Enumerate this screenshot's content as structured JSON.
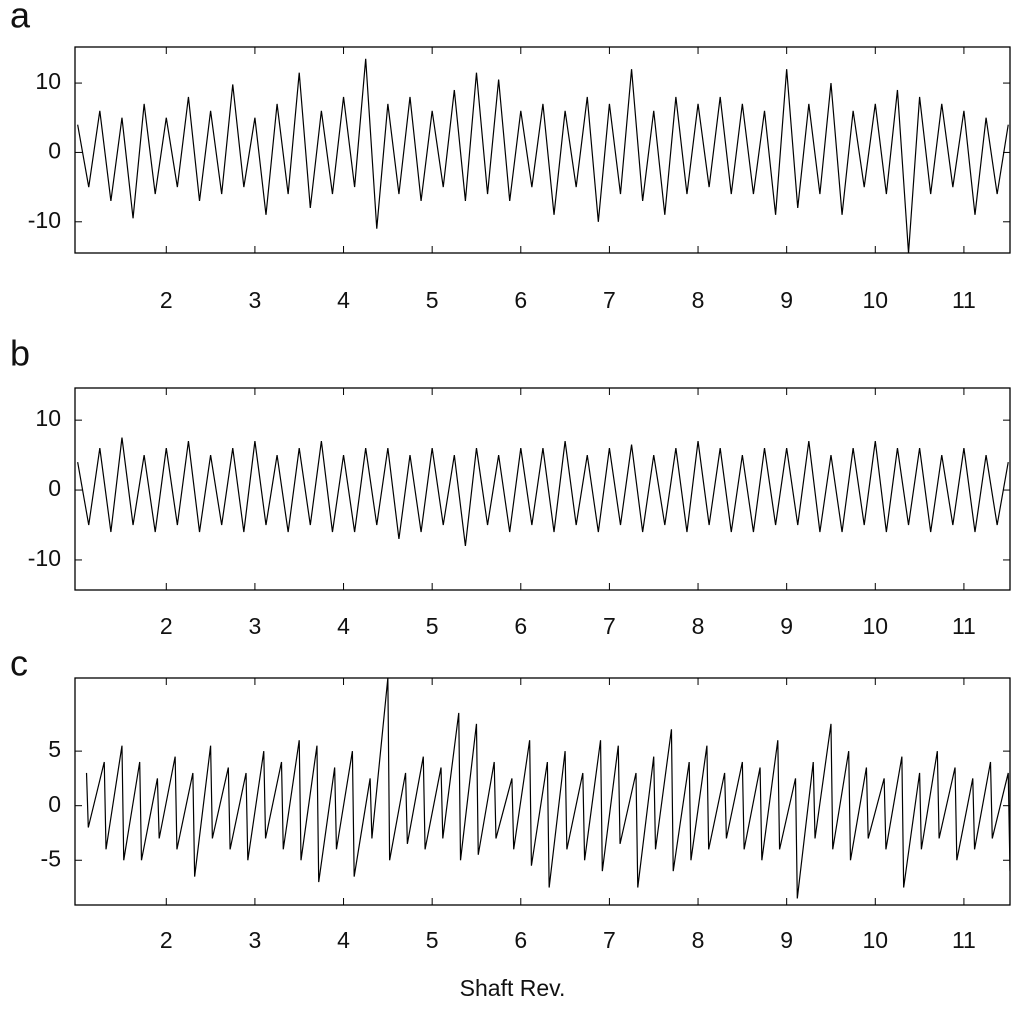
{
  "chart_data": [
    {
      "type": "line",
      "title": "a",
      "color": "#000000",
      "xlim": [
        0.97,
        11.52
      ],
      "ylim": [
        -14.5,
        15.2
      ],
      "xticks": [
        2,
        3,
        4,
        5,
        6,
        7,
        8,
        9,
        10,
        11
      ],
      "yticks": [
        -10,
        0,
        10
      ],
      "x": [
        1,
        1.125,
        1.25,
        1.375,
        1.5,
        1.625,
        1.75,
        1.875,
        2,
        2.125,
        2.25,
        2.375,
        2.5,
        2.625,
        2.75,
        2.875,
        3,
        3.125,
        3.25,
        3.375,
        3.5,
        3.625,
        3.75,
        3.875,
        4,
        4.125,
        4.25,
        4.375,
        4.5,
        4.625,
        4.75,
        4.875,
        5,
        5.125,
        5.25,
        5.375,
        5.5,
        5.625,
        5.75,
        5.875,
        6,
        6.125,
        6.25,
        6.375,
        6.5,
        6.625,
        6.75,
        6.875,
        7,
        7.125,
        7.25,
        7.375,
        7.5,
        7.625,
        7.75,
        7.875,
        8,
        8.125,
        8.25,
        8.375,
        8.5,
        8.625,
        8.75,
        8.875,
        9,
        9.125,
        9.25,
        9.375,
        9.5,
        9.625,
        9.75,
        9.875,
        10,
        10.125,
        10.25,
        10.375,
        10.5,
        10.625,
        10.75,
        10.875,
        11,
        11.125,
        11.25,
        11.375,
        11.5
      ],
      "values": [
        4,
        -5,
        6,
        -7,
        5,
        -9.5,
        7,
        -6,
        5,
        -5,
        8,
        -7,
        6,
        -6,
        9.8,
        -5,
        5,
        -9,
        7,
        -6,
        11.5,
        -8,
        6,
        -6,
        8,
        -5,
        13.5,
        -11,
        7,
        -6,
        8,
        -7,
        6,
        -5,
        9,
        -7,
        11.5,
        -6,
        10.5,
        -7,
        6,
        -5,
        7,
        -9,
        6,
        -5,
        8,
        -10,
        7,
        -6,
        12,
        -7,
        6,
        -9,
        8,
        -6,
        7,
        -5,
        8,
        -6,
        7,
        -6,
        6,
        -9,
        12,
        -8,
        7,
        -6,
        10,
        -9,
        6,
        -5,
        7,
        -6,
        9,
        -14.5,
        8,
        -6,
        7,
        -5,
        6,
        -9,
        5,
        -6,
        4
      ]
    },
    {
      "type": "line",
      "title": "b",
      "color": "#000000",
      "xlim": [
        0.97,
        11.52
      ],
      "ylim": [
        -14.3,
        14.6
      ],
      "xticks": [
        2,
        3,
        4,
        5,
        6,
        7,
        8,
        9,
        10,
        11
      ],
      "yticks": [
        -10,
        0,
        10
      ],
      "x": [
        1,
        1.125,
        1.25,
        1.375,
        1.5,
        1.625,
        1.75,
        1.875,
        2,
        2.125,
        2.25,
        2.375,
        2.5,
        2.625,
        2.75,
        2.875,
        3,
        3.125,
        3.25,
        3.375,
        3.5,
        3.625,
        3.75,
        3.875,
        4,
        4.125,
        4.25,
        4.375,
        4.5,
        4.625,
        4.75,
        4.875,
        5,
        5.125,
        5.25,
        5.375,
        5.5,
        5.625,
        5.75,
        5.875,
        6,
        6.125,
        6.25,
        6.375,
        6.5,
        6.625,
        6.75,
        6.875,
        7,
        7.125,
        7.25,
        7.375,
        7.5,
        7.625,
        7.75,
        7.875,
        8,
        8.125,
        8.25,
        8.375,
        8.5,
        8.625,
        8.75,
        8.875,
        9,
        9.125,
        9.25,
        9.375,
        9.5,
        9.625,
        9.75,
        9.875,
        10,
        10.125,
        10.25,
        10.375,
        10.5,
        10.625,
        10.75,
        10.875,
        11,
        11.125,
        11.25,
        11.375,
        11.5
      ],
      "values": [
        4,
        -5,
        6,
        -6,
        7.5,
        -5,
        5,
        -6,
        6,
        -5,
        7,
        -6,
        5,
        -5,
        6,
        -6,
        7,
        -5,
        5,
        -6,
        6,
        -5,
        7,
        -6,
        5,
        -6,
        6,
        -5,
        6,
        -7,
        5,
        -6,
        6,
        -5,
        5,
        -8,
        6,
        -5,
        5,
        -6,
        6,
        -5,
        6,
        -6,
        7,
        -5,
        5,
        -6,
        6,
        -5,
        6.5,
        -6,
        5,
        -5,
        6,
        -6,
        7,
        -5,
        6,
        -6,
        5,
        -6,
        6,
        -5,
        6,
        -5,
        7,
        -6,
        5,
        -6,
        6,
        -5,
        7,
        -6,
        6,
        -5,
        6,
        -6,
        5,
        -5,
        6,
        -6,
        5,
        -5,
        4
      ]
    },
    {
      "type": "line",
      "title": "c",
      "x_label": "Shaft Rev.",
      "color": "#000000",
      "xlim": [
        0.97,
        11.52
      ],
      "ylim": [
        -9.1,
        11.7
      ],
      "xticks": [
        2,
        3,
        4,
        5,
        6,
        7,
        8,
        9,
        10,
        11
      ],
      "yticks": [
        -5,
        0,
        5
      ],
      "x": [
        1.1,
        1.12,
        1.3,
        1.32,
        1.5,
        1.52,
        1.7,
        1.72,
        1.9,
        1.92,
        2.1,
        2.12,
        2.3,
        2.32,
        2.5,
        2.52,
        2.7,
        2.72,
        2.9,
        2.92,
        3.1,
        3.12,
        3.3,
        3.32,
        3.5,
        3.52,
        3.7,
        3.72,
        3.9,
        3.92,
        4.1,
        4.12,
        4.3,
        4.32,
        4.5,
        4.52,
        4.7,
        4.72,
        4.9,
        4.92,
        5.1,
        5.12,
        5.3,
        5.32,
        5.5,
        5.52,
        5.7,
        5.72,
        5.9,
        5.92,
        6.1,
        6.12,
        6.3,
        6.32,
        6.5,
        6.52,
        6.7,
        6.72,
        6.9,
        6.92,
        7.1,
        7.12,
        7.3,
        7.32,
        7.5,
        7.52,
        7.7,
        7.72,
        7.9,
        7.92,
        8.1,
        8.12,
        8.3,
        8.32,
        8.5,
        8.52,
        8.7,
        8.72,
        8.9,
        8.92,
        9.1,
        9.12,
        9.3,
        9.32,
        9.5,
        9.52,
        9.7,
        9.72,
        9.9,
        9.92,
        10.1,
        10.12,
        10.3,
        10.32,
        10.5,
        10.52,
        10.7,
        10.72,
        10.9,
        10.92,
        11.1,
        11.12,
        11.3,
        11.32,
        11.5,
        11.52
      ],
      "values": [
        3,
        -2,
        4,
        -4,
        5.5,
        -5,
        4,
        -5,
        2.5,
        -3,
        4.5,
        -4,
        3,
        -6.5,
        5.5,
        -3,
        3.5,
        -4,
        3,
        -5,
        5,
        -3,
        4,
        -4,
        6,
        -5,
        5.5,
        -7,
        3.5,
        -4,
        5,
        -6.5,
        2.5,
        -3,
        11.7,
        -5,
        3,
        -3.5,
        4.5,
        -4,
        3.5,
        -3,
        8.5,
        -5,
        7.5,
        -4.5,
        4,
        -3,
        2.5,
        -4,
        6,
        -5.5,
        4,
        -7.5,
        5,
        -4,
        3,
        -5,
        6,
        -6,
        5.5,
        -3.5,
        3,
        -7.5,
        4.5,
        -4,
        7,
        -6,
        4,
        -5,
        5.5,
        -4,
        3,
        -3,
        4,
        -4,
        3.5,
        -5,
        6,
        -4,
        2.5,
        -8.5,
        4,
        -3,
        7.5,
        -4,
        5,
        -5,
        3.5,
        -3,
        2.5,
        -4,
        4.5,
        -7.5,
        3,
        -4,
        5,
        -3,
        3.5,
        -5,
        2.5,
        -4,
        4,
        -3,
        3,
        -6
      ]
    }
  ]
}
